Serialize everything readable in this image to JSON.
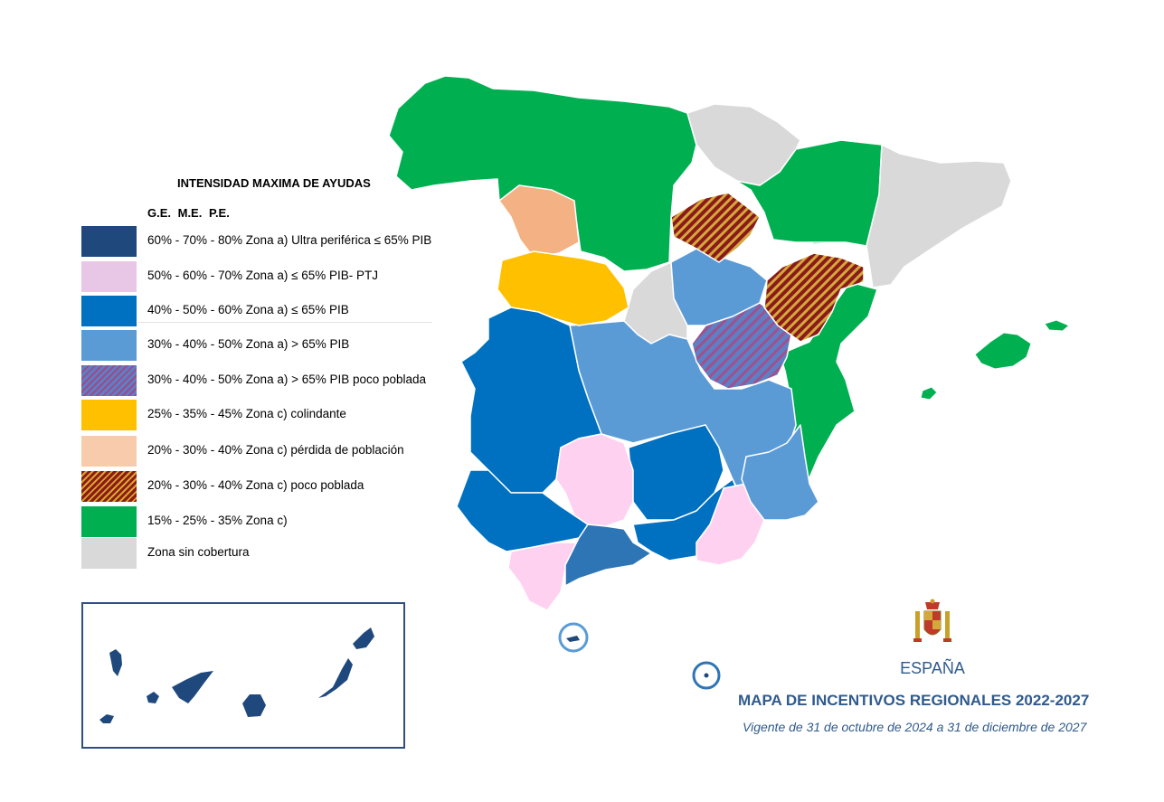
{
  "legend": {
    "title": "INTENSIDAD MAXIMA DE AYUDAS",
    "columns": "G.E.  M.E.  P.E.",
    "items": [
      {
        "label": "60% -  70% - 80%  Zona a) Ultra periférica ≤ 65% PIB",
        "color": "#1f497d",
        "pattern": "solid"
      },
      {
        "label": "50% -  60% - 70%  Zona a) ≤ 65% PIB- PTJ",
        "color": "#e8c7e6",
        "pattern": "solid"
      },
      {
        "label": "40% - 50% - 60%  Zona a) ≤ 65% PIB",
        "color": "#0070c0",
        "pattern": "solid"
      },
      {
        "label": "30% -  40% - 50%  Zona a) > 65% PIB",
        "color": "#5b9bd5",
        "pattern": "solid"
      },
      {
        "label": "30% -  40% - 50%  Zona a) > 65% PIB poco poblada",
        "color": "#7f6fb0",
        "pattern": "hatch-purple"
      },
      {
        "label": "25% -  35% - 45%  Zona c) colindante",
        "color": "#ffc000",
        "pattern": "solid"
      },
      {
        "label": "20% -  30% - 40%  Zona c) pérdida de población",
        "color": "#f8cbad",
        "pattern": "solid"
      },
      {
        "label": "20% -  30% - 40%  Zona c) poco poblada",
        "color": "#9a3b1b",
        "pattern": "hatch-red"
      },
      {
        "label": "15% -  25% - 35%  Zona c)",
        "color": "#00b050",
        "pattern": "solid"
      },
      {
        "label": "Zona sin cobertura",
        "color": "#d9d9d9",
        "pattern": "solid"
      }
    ]
  },
  "footer": {
    "country": "ESPAÑA",
    "title": "MAPA DE INCENTIVOS REGIONALES 2022-2027",
    "subtitle": "Vigente de 31 de octubre de 2024 a 31 de diciembre de 2027"
  },
  "colors": {
    "ultra_periferica": "#1f497d",
    "ptj": "#ffd1f0",
    "zona_a_65": "#0070c0",
    "zona_a_gt65": "#5b9bd5",
    "colindante": "#ffc000",
    "perdida_poblacion": "#f4b183",
    "zona_c": "#00b050",
    "sin_cobertura": "#d9d9d9",
    "text_blue": "#2f5a8c"
  }
}
